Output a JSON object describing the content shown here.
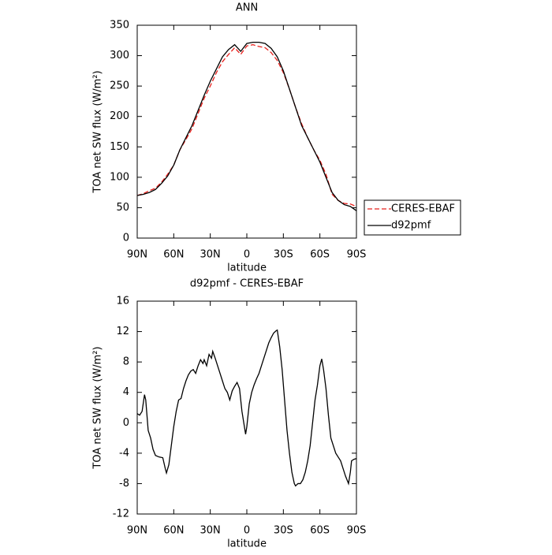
{
  "chart_data": [
    {
      "type": "line",
      "title": "ANN",
      "xlabel": "latitude",
      "ylabel": "TOA net SW flux (W/m²)",
      "x": [
        90,
        85,
        80,
        75,
        70,
        65,
        60,
        55,
        50,
        45,
        40,
        35,
        30,
        25,
        20,
        15,
        10,
        5,
        0,
        -5,
        -10,
        -15,
        -20,
        -25,
        -30,
        -35,
        -40,
        -45,
        -50,
        -55,
        -60,
        -65,
        -70,
        -75,
        -80,
        -85,
        -90
      ],
      "series": [
        {
          "name": "CERES-EBAF",
          "color": "#e8201c",
          "dash": true,
          "values": [
            70,
            73,
            78,
            82,
            92,
            105,
            120,
            145,
            162,
            180,
            205,
            230,
            250,
            272,
            290,
            302,
            313,
            302,
            316,
            318,
            315,
            313,
            305,
            292,
            272,
            245,
            215,
            188,
            165,
            145,
            128,
            105,
            72,
            62,
            57,
            56,
            52
          ]
        },
        {
          "name": "d92pmf",
          "color": "#000000",
          "dash": false,
          "values": [
            70,
            72,
            75,
            80,
            90,
            102,
            120,
            145,
            165,
            185,
            210,
            235,
            258,
            278,
            298,
            310,
            318,
            307,
            320,
            322,
            322,
            320,
            312,
            298,
            275,
            245,
            215,
            185,
            165,
            145,
            125,
            100,
            75,
            62,
            55,
            52,
            45
          ]
        }
      ],
      "xlim": [
        90,
        -90
      ],
      "xticks": [
        {
          "value": 90,
          "label": "90N"
        },
        {
          "value": 60,
          "label": "60N"
        },
        {
          "value": 30,
          "label": "30N"
        },
        0,
        {
          "value": -30,
          "label": "30S"
        },
        {
          "value": -60,
          "label": "60S"
        },
        {
          "value": -90,
          "label": "90S"
        }
      ],
      "ylim": [
        0,
        350
      ],
      "yticks": [
        0,
        50,
        100,
        150,
        200,
        250,
        300,
        350
      ],
      "legend": "right"
    },
    {
      "type": "line",
      "title": "d92pmf - CERES-EBAF",
      "xlabel": "latitude",
      "ylabel": "TOA net SW flux (W/m²)",
      "x": [
        90,
        88,
        86,
        84,
        83,
        81,
        79,
        77,
        75,
        72,
        69,
        67,
        66,
        64,
        62,
        60,
        58,
        56,
        54,
        52,
        50,
        48,
        46,
        44,
        42,
        40,
        38,
        36,
        35,
        33,
        31,
        29,
        28,
        26,
        24,
        22,
        20,
        18,
        16,
        14,
        12,
        10,
        8,
        6,
        4,
        2,
        1,
        0,
        -2,
        -4,
        -6,
        -8,
        -10,
        -12,
        -14,
        -16,
        -18,
        -20,
        -22,
        -24,
        -25,
        -27,
        -29,
        -31,
        -33,
        -35,
        -37,
        -39,
        -40,
        -42,
        -44,
        -46,
        -48,
        -50,
        -52,
        -54,
        -56,
        -58,
        -60,
        -61.5,
        -63,
        -65,
        -67,
        -69,
        -71,
        -73,
        -75,
        -77,
        -79,
        -81,
        -83.5,
        -85,
        -86,
        -88,
        -90
      ],
      "series": [
        {
          "name": "d92pmf - CERES-EBAF",
          "color": "#000000",
          "dash": false,
          "values": [
            1.2,
            1.0,
            1.5,
            3.7,
            3.0,
            -1,
            -2,
            -3.5,
            -4.3,
            -4.5,
            -4.6,
            -6,
            -6.6,
            -5.5,
            -3,
            -0.5,
            1.5,
            3,
            3.2,
            4.5,
            5.5,
            6.3,
            6.8,
            7,
            6.5,
            7.5,
            8.3,
            7.8,
            8.3,
            7.5,
            9,
            8.5,
            9.4,
            8.5,
            7.5,
            6.5,
            5.5,
            4.5,
            4,
            3,
            4.2,
            4.8,
            5.3,
            4.5,
            1.5,
            -0.5,
            -1.5,
            -0.5,
            2.5,
            4,
            5,
            5.8,
            6.5,
            7.5,
            8.5,
            9.5,
            10.5,
            11.2,
            11.8,
            12.1,
            12.2,
            10,
            7,
            3,
            -1,
            -4,
            -6.5,
            -8,
            -8.3,
            -8,
            -8,
            -7.5,
            -6.5,
            -5,
            -3,
            0,
            3,
            5,
            7.5,
            8.4,
            7,
            4.5,
            1,
            -2,
            -3,
            -4,
            -4.5,
            -5,
            -6,
            -7,
            -8,
            -6.5,
            -5,
            -4.8,
            -4.7
          ]
        }
      ],
      "xlim": [
        90,
        -90
      ],
      "xticks": [
        {
          "value": 90,
          "label": "90N"
        },
        {
          "value": 60,
          "label": "60N"
        },
        {
          "value": 30,
          "label": "30N"
        },
        0,
        {
          "value": -30,
          "label": "30S"
        },
        {
          "value": -60,
          "label": "60S"
        },
        {
          "value": -90,
          "label": "90S"
        }
      ],
      "ylim": [
        -12,
        16
      ],
      "yticks": [
        -12,
        -8,
        -4,
        0,
        4,
        8,
        12,
        16
      ]
    }
  ]
}
